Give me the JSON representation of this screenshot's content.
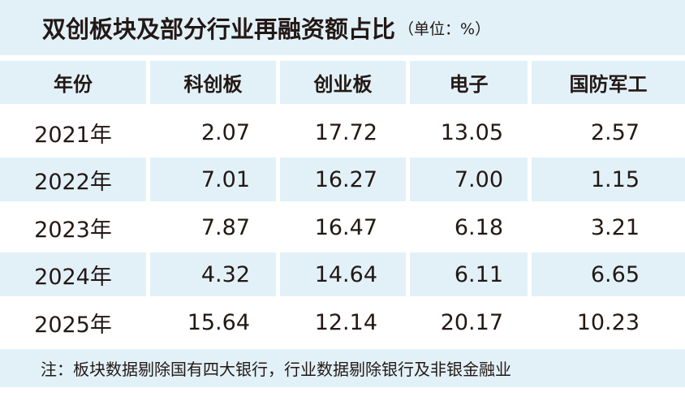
{
  "header": {
    "title": "双创板块及部分行业再融资额占比",
    "unit": "（单位：%）"
  },
  "table": {
    "columns": [
      "年份",
      "科创板",
      "创业板",
      "电子",
      "国防军工"
    ],
    "rows": [
      [
        "2021年",
        "2.07",
        "17.72",
        "13.05",
        "2.57"
      ],
      [
        "2022年",
        "7.01",
        "16.27",
        "7.00",
        "1.15"
      ],
      [
        "2023年",
        "7.87",
        "16.47",
        "6.18",
        "3.21"
      ],
      [
        "2024年",
        "4.32",
        "14.64",
        "6.11",
        "6.65"
      ],
      [
        "2025年",
        "15.64",
        "12.14",
        "20.17",
        "10.23"
      ]
    ]
  },
  "note": "注：板块数据剔除国有四大银行，行业数据剔除银行及非银金融业"
}
